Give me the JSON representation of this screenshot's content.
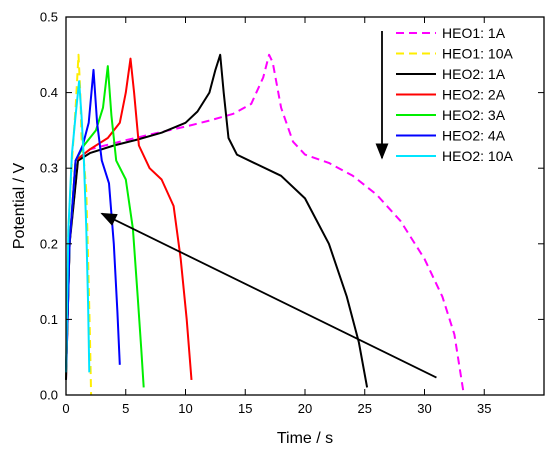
{
  "chart_data": {
    "type": "line",
    "title": "",
    "xlabel": "Time / s",
    "ylabel": "Potential / V",
    "xlim": [
      0,
      40
    ],
    "ylim": [
      0,
      0.5
    ],
    "x_ticks": [
      0,
      5,
      10,
      15,
      20,
      25,
      30,
      35
    ],
    "y_ticks": [
      0.0,
      0.1,
      0.2,
      0.3,
      0.4,
      0.5
    ],
    "y_tick_labels": [
      "0.0",
      "0.1",
      "0.2",
      "0.3",
      "0.4",
      "0.5"
    ],
    "grid": false,
    "legend_position": "top-right",
    "series": [
      {
        "name": "HEO1: 1A",
        "color": "#ff00ff",
        "dash": "dashed",
        "points": [
          [
            0,
            0.02
          ],
          [
            0.3,
            0.2
          ],
          [
            1,
            0.31
          ],
          [
            2,
            0.325
          ],
          [
            5,
            0.337
          ],
          [
            8,
            0.348
          ],
          [
            10,
            0.355
          ],
          [
            12,
            0.363
          ],
          [
            14,
            0.372
          ],
          [
            15.5,
            0.385
          ],
          [
            16.5,
            0.42
          ],
          [
            17,
            0.45
          ],
          [
            17.3,
            0.44
          ],
          [
            18,
            0.38
          ],
          [
            19,
            0.335
          ],
          [
            20,
            0.318
          ],
          [
            22,
            0.307
          ],
          [
            24,
            0.29
          ],
          [
            26,
            0.265
          ],
          [
            28,
            0.23
          ],
          [
            30,
            0.18
          ],
          [
            31.5,
            0.13
          ],
          [
            32.5,
            0.08
          ],
          [
            33.3,
            0.0
          ]
        ]
      },
      {
        "name": "HEO1: 10A",
        "color": "#ffee00",
        "dash": "dashed",
        "points": [
          [
            0,
            0.02
          ],
          [
            0.2,
            0.22
          ],
          [
            0.5,
            0.31
          ],
          [
            0.8,
            0.38
          ],
          [
            1.05,
            0.45
          ],
          [
            1.2,
            0.4
          ],
          [
            1.3,
            0.34
          ],
          [
            1.5,
            0.31
          ],
          [
            1.7,
            0.27
          ],
          [
            1.85,
            0.18
          ],
          [
            2.0,
            0.08
          ],
          [
            2.1,
            0.0
          ]
        ]
      },
      {
        "name": "HEO2: 1A",
        "color": "#000000",
        "dash": "solid",
        "points": [
          [
            0,
            0.02
          ],
          [
            0.3,
            0.2
          ],
          [
            1,
            0.31
          ],
          [
            2,
            0.32
          ],
          [
            4,
            0.33
          ],
          [
            6,
            0.338
          ],
          [
            8,
            0.347
          ],
          [
            10,
            0.36
          ],
          [
            11,
            0.375
          ],
          [
            12,
            0.4
          ],
          [
            12.5,
            0.43
          ],
          [
            12.9,
            0.45
          ],
          [
            13.2,
            0.4
          ],
          [
            13.6,
            0.34
          ],
          [
            14.3,
            0.318
          ],
          [
            16,
            0.305
          ],
          [
            18,
            0.29
          ],
          [
            20,
            0.26
          ],
          [
            22,
            0.2
          ],
          [
            23.5,
            0.13
          ],
          [
            24.5,
            0.07
          ],
          [
            25.2,
            0.01
          ]
        ]
      },
      {
        "name": "HEO2: 2A",
        "color": "#ff0000",
        "dash": "solid",
        "points": [
          [
            0,
            0.03
          ],
          [
            0.3,
            0.2
          ],
          [
            0.8,
            0.31
          ],
          [
            2,
            0.325
          ],
          [
            3.5,
            0.34
          ],
          [
            4.5,
            0.36
          ],
          [
            5.0,
            0.4
          ],
          [
            5.4,
            0.445
          ],
          [
            5.7,
            0.4
          ],
          [
            6.1,
            0.33
          ],
          [
            7,
            0.3
          ],
          [
            8,
            0.285
          ],
          [
            9,
            0.25
          ],
          [
            9.6,
            0.18
          ],
          [
            10.1,
            0.1
          ],
          [
            10.5,
            0.02
          ]
        ]
      },
      {
        "name": "HEO2: 3A",
        "color": "#00ee00",
        "dash": "solid",
        "points": [
          [
            0,
            0.03
          ],
          [
            0.3,
            0.2
          ],
          [
            0.8,
            0.31
          ],
          [
            1.5,
            0.33
          ],
          [
            2.5,
            0.35
          ],
          [
            3.1,
            0.38
          ],
          [
            3.5,
            0.435
          ],
          [
            3.8,
            0.37
          ],
          [
            4.2,
            0.31
          ],
          [
            5,
            0.285
          ],
          [
            5.6,
            0.22
          ],
          [
            6.0,
            0.13
          ],
          [
            6.3,
            0.06
          ],
          [
            6.5,
            0.01
          ]
        ]
      },
      {
        "name": "HEO2: 4A",
        "color": "#0000ff",
        "dash": "solid",
        "points": [
          [
            0,
            0.03
          ],
          [
            0.3,
            0.2
          ],
          [
            0.8,
            0.31
          ],
          [
            1.4,
            0.33
          ],
          [
            1.9,
            0.36
          ],
          [
            2.3,
            0.43
          ],
          [
            2.6,
            0.36
          ],
          [
            3,
            0.31
          ],
          [
            3.6,
            0.28
          ],
          [
            4.0,
            0.2
          ],
          [
            4.3,
            0.11
          ],
          [
            4.5,
            0.04
          ]
        ]
      },
      {
        "name": "HEO2: 10A",
        "color": "#00e5ff",
        "dash": "solid",
        "points": [
          [
            0,
            0.03
          ],
          [
            0.2,
            0.22
          ],
          [
            0.5,
            0.32
          ],
          [
            0.8,
            0.37
          ],
          [
            1.1,
            0.415
          ],
          [
            1.3,
            0.37
          ],
          [
            1.5,
            0.31
          ],
          [
            1.7,
            0.22
          ],
          [
            1.85,
            0.12
          ],
          [
            1.95,
            0.03
          ]
        ]
      }
    ],
    "annotations": [
      {
        "type": "arrow",
        "from": [
          31,
          0.023
        ],
        "to": [
          3.0,
          0.24
        ]
      },
      {
        "type": "arrow",
        "from": [
          25.8,
          0.49
        ],
        "to": [
          25.8,
          0.31
        ],
        "placement": "legend",
        "note": "vertical arrow beside legend"
      }
    ]
  }
}
